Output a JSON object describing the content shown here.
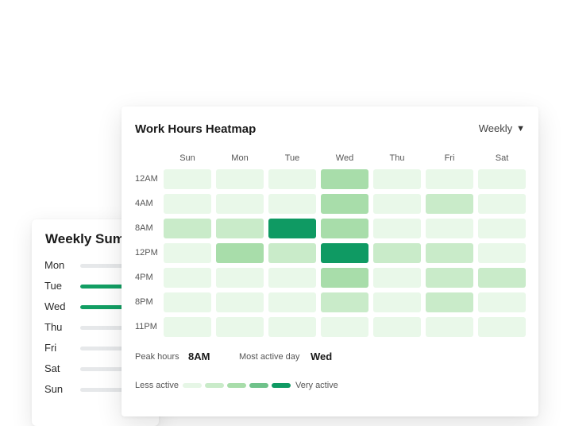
{
  "summary_card": {
    "title": "Weekly Summary",
    "days": [
      {
        "label": "Mon",
        "level": 0.0
      },
      {
        "label": "Tue",
        "level": 0.85
      },
      {
        "label": "Wed",
        "level": 0.85
      },
      {
        "label": "Thu",
        "level": 0.0
      },
      {
        "label": "Fri",
        "level": 0.0
      },
      {
        "label": "Sat",
        "level": 0.0
      },
      {
        "label": "Sun",
        "level": 0.0
      }
    ]
  },
  "heatmap": {
    "title": "Work Hours Heatmap",
    "range_selector": {
      "value": "Weekly",
      "caret": "▼"
    },
    "days": [
      "Sun",
      "Mon",
      "Tue",
      "Wed",
      "Thu",
      "Fri",
      "Sat"
    ],
    "times": [
      "12AM",
      "4AM",
      "8AM",
      "12PM",
      "4PM",
      "8PM",
      "11PM"
    ],
    "levels": [
      [
        0,
        0,
        0,
        2,
        0,
        0,
        0
      ],
      [
        0,
        0,
        0,
        2,
        0,
        1,
        0
      ],
      [
        1,
        1,
        4,
        2,
        0,
        0,
        0
      ],
      [
        0,
        2,
        1,
        4,
        1,
        1,
        0
      ],
      [
        0,
        0,
        0,
        2,
        0,
        1,
        1
      ],
      [
        0,
        0,
        0,
        1,
        0,
        1,
        0
      ],
      [
        0,
        0,
        0,
        0,
        0,
        0,
        0
      ]
    ],
    "stats": {
      "peak_label": "Peak hours",
      "peak_value": "8AM",
      "active_label": "Most active day",
      "active_value": "Wed"
    },
    "legend": {
      "less_label": "Less active",
      "more_label": "Very active",
      "colors": [
        "#e6f6e6",
        "#c9ebc9",
        "#a8ddaa",
        "#6fc28a",
        "#0f9a63"
      ]
    }
  }
}
